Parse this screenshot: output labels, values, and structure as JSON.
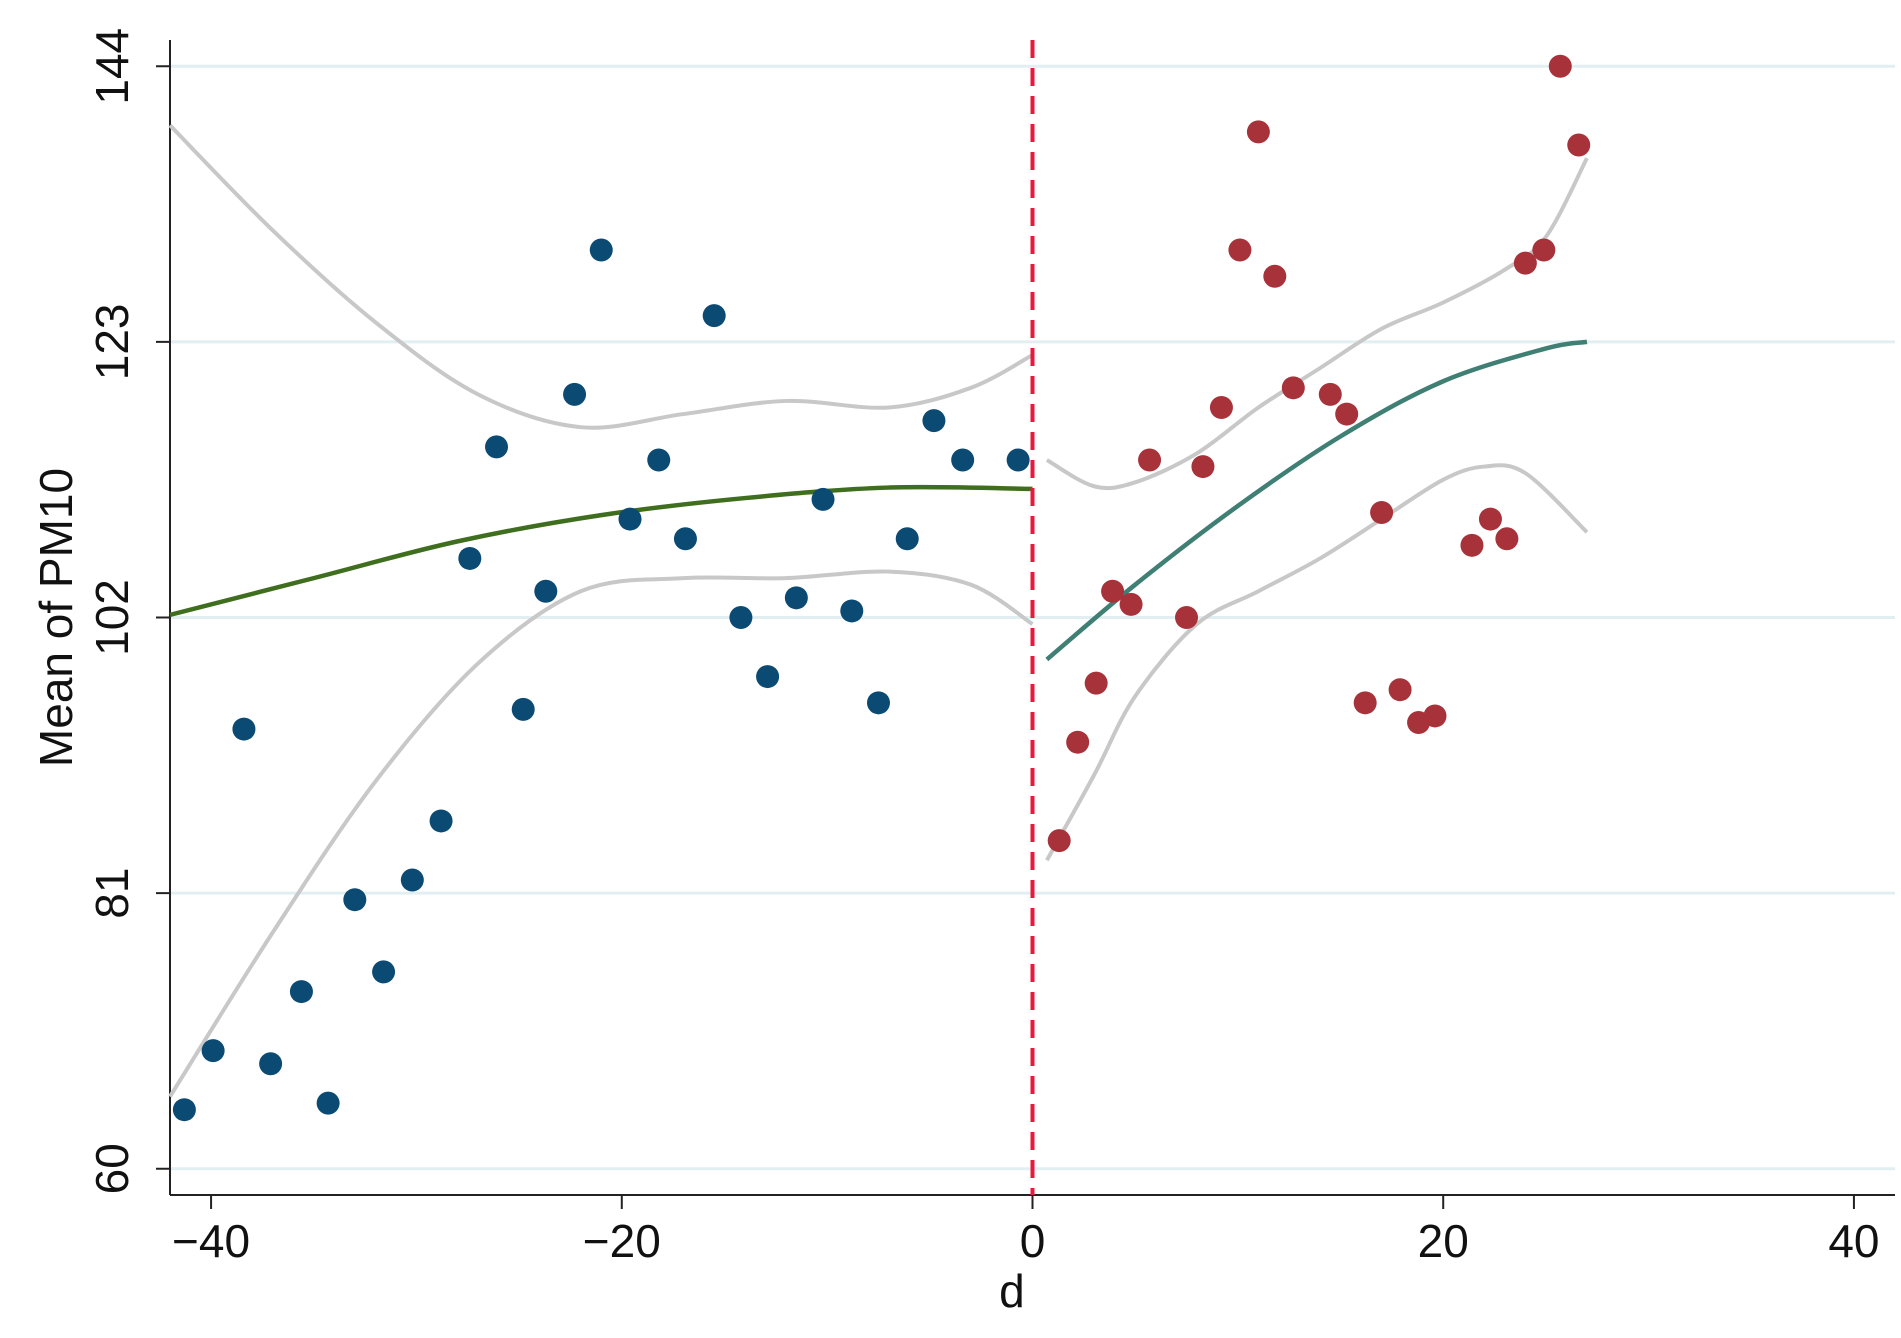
{
  "chart_data": {
    "type": "scatter",
    "title": "",
    "xlabel": "d",
    "ylabel": "Mean of PM10",
    "xlim": [
      -42,
      42
    ],
    "ylim": [
      58,
      146
    ],
    "x_ticks": [
      -40,
      -20,
      0,
      20,
      40
    ],
    "x_tick_labels": [
      "−40",
      "−20",
      "0",
      "20",
      "40"
    ],
    "y_ticks": [
      60,
      81,
      102,
      123,
      144
    ],
    "y_tick_labels": [
      "60",
      "81",
      "102",
      "123",
      "144"
    ],
    "grid": "horizontal",
    "legend": "none",
    "cutoff": 0,
    "colors": {
      "left_points": "#0b4a73",
      "right_points": "#a8323a",
      "left_fit": "#3e6e1e",
      "right_fit": "#3f7f74",
      "ci": "#c8c8c8",
      "cutoff_line": "#e8193c",
      "grid": "#e2eff2",
      "axis": "#222222"
    },
    "series": [
      {
        "name": "",
        "role": "left_points",
        "x": [
          -41.3,
          -39.9,
          -38.4,
          -37.1,
          -35.6,
          -34.3,
          -33.0,
          -31.6,
          -30.2,
          -28.8,
          -27.4,
          -26.1,
          -24.8,
          -23.7,
          -22.3,
          -21.0,
          -19.6,
          -18.2,
          -16.9,
          -15.5,
          -14.2,
          -12.9,
          -11.5,
          -10.2,
          -8.8,
          -7.5,
          -6.1,
          -4.8,
          -3.4,
          -0.7
        ],
        "y": [
          64.5,
          69.0,
          93.5,
          68.0,
          73.5,
          65.0,
          80.5,
          75.0,
          82.0,
          86.5,
          106.5,
          115.0,
          95.0,
          104.0,
          119.0,
          130.0,
          109.5,
          114.0,
          108.0,
          125.0,
          102.0,
          97.5,
          103.5,
          111.0,
          102.5,
          95.5,
          108.0,
          117.0,
          114.0,
          114.0
        ]
      },
      {
        "name": "",
        "role": "right_points",
        "x": [
          1.3,
          2.2,
          3.1,
          3.9,
          4.8,
          5.7,
          7.5,
          8.3,
          9.2,
          10.1,
          11.0,
          11.8,
          12.7,
          14.5,
          15.3,
          16.2,
          17.0,
          17.9,
          18.8,
          19.6,
          21.4,
          22.3,
          23.1,
          24.0,
          24.9,
          25.7,
          26.6
        ],
        "y": [
          85.0,
          92.5,
          97.0,
          104.0,
          103.0,
          114.0,
          102.0,
          113.5,
          118.0,
          130.0,
          139.0,
          128.0,
          119.5,
          119.0,
          117.5,
          95.5,
          110.0,
          96.5,
          94.0,
          94.5,
          107.5,
          109.5,
          108.0,
          129.0,
          130.0,
          144.0,
          138.0
        ]
      },
      {
        "name": "",
        "role": "left_fit",
        "x": [
          -42,
          -35,
          -28,
          -21,
          -14,
          -7,
          0
        ],
        "y": [
          102.2,
          105.0,
          107.8,
          109.8,
          111.1,
          111.9,
          111.8
        ]
      },
      {
        "name": "",
        "role": "right_fit",
        "x": [
          0.7,
          5,
          10,
          15,
          20,
          25,
          27
        ],
        "y": [
          98.8,
          104.5,
          110.5,
          115.8,
          120.0,
          122.5,
          123.0
        ]
      },
      {
        "name": "",
        "role": "left_ci_upper",
        "x": [
          -42,
          -37,
          -32,
          -27,
          -22,
          -17,
          -12,
          -7,
          -3,
          0
        ],
        "y": [
          139.5,
          131.5,
          124.5,
          119.0,
          116.5,
          117.5,
          118.5,
          118.0,
          119.5,
          122.0
        ]
      },
      {
        "name": "",
        "role": "left_ci_lower",
        "x": [
          -42,
          -37,
          -32,
          -27,
          -22,
          -17,
          -12,
          -7,
          -3,
          0
        ],
        "y": [
          65.5,
          78.0,
          89.5,
          98.5,
          104.0,
          105.0,
          105.0,
          105.5,
          104.5,
          101.5
        ]
      },
      {
        "name": "",
        "role": "right_ci_upper",
        "x": [
          0.7,
          3,
          5,
          8,
          11,
          14,
          17,
          20,
          23,
          25,
          27
        ],
        "y": [
          114.0,
          112.0,
          112.3,
          114.5,
          118.0,
          121.0,
          124.0,
          126.0,
          128.5,
          131.0,
          137.0
        ]
      },
      {
        "name": "",
        "role": "right_ci_lower",
        "x": [
          0.7,
          3,
          5,
          8,
          11,
          14,
          17,
          20,
          22,
          24,
          27
        ],
        "y": [
          83.5,
          90.0,
          96.0,
          101.5,
          104.0,
          106.5,
          109.5,
          112.5,
          113.5,
          113.0,
          108.5
        ]
      }
    ]
  }
}
